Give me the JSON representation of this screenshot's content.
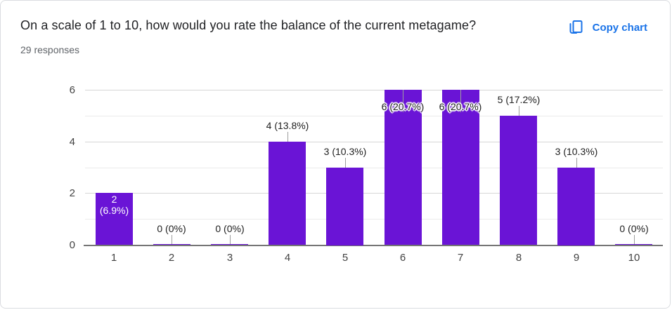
{
  "header": {
    "title": "On a scale of 1 to 10, how would you rate the balance of the current metagame?",
    "responses": "29 responses",
    "copy_chart_label": "Copy chart"
  },
  "colors": {
    "bar": "#6a14d6",
    "accent_blue": "#1a73e8",
    "title_text": "#202124",
    "subtitle_text": "#5f6368",
    "tick_text": "#424242",
    "annotation_text": "#212121",
    "gridline_major": "#d6d6d6",
    "gridline_minor": "#ebebeb",
    "baseline": "#757575",
    "stem": "#9e9e9e",
    "card_border": "#dadce0"
  },
  "chart_data": {
    "type": "bar",
    "title": "On a scale of 1 to 10, how would you rate the balance of the current metagame?",
    "subtitle": "29 responses",
    "categories": [
      "1",
      "2",
      "3",
      "4",
      "5",
      "6",
      "7",
      "8",
      "9",
      "10"
    ],
    "values": [
      2,
      0,
      0,
      4,
      3,
      6,
      6,
      5,
      3,
      0
    ],
    "labels": [
      "2 (6.9%)",
      "0 (0%)",
      "0 (0%)",
      "4 (13.8%)",
      "3 (10.3%)",
      "6 (20.7%)",
      "6 (20.7%)",
      "5 (17.2%)",
      "3 (10.3%)",
      "0 (0%)"
    ],
    "label_placement": [
      "inside",
      "axis",
      "axis",
      "above",
      "above",
      "overlap",
      "overlap",
      "above",
      "above",
      "axis"
    ],
    "xlabel": "",
    "ylabel": "",
    "ylim": [
      0,
      6
    ],
    "yticks": [
      0,
      2,
      4,
      6
    ],
    "gridline_step": 1,
    "legend": "none",
    "grid": true
  }
}
